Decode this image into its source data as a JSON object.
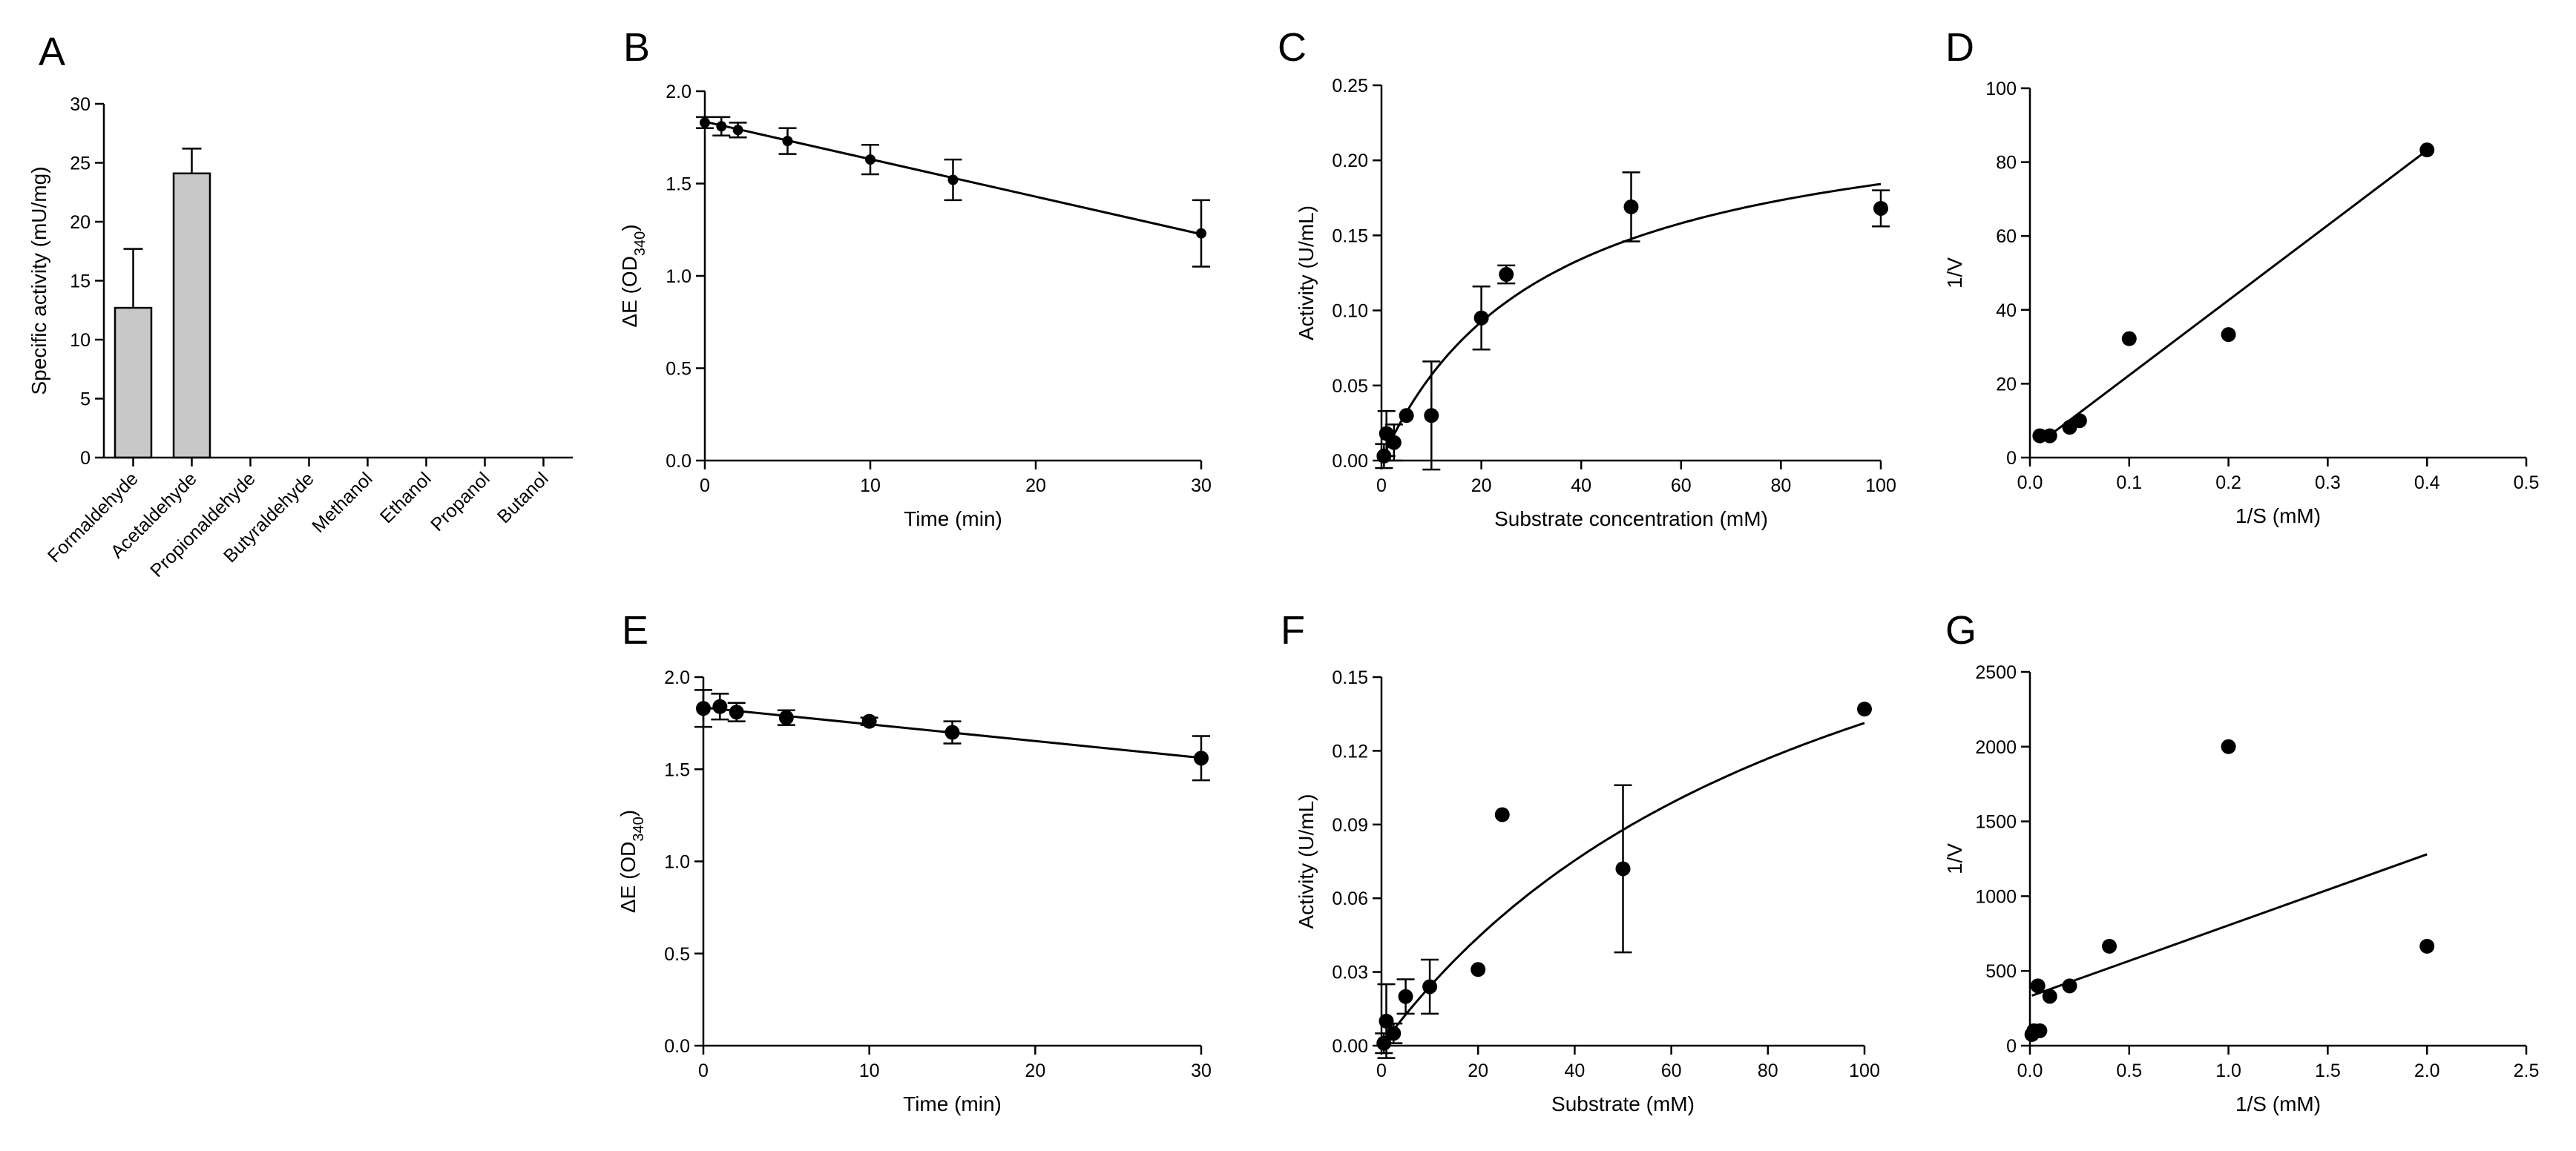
{
  "figure": {
    "panels": [
      {
        "id": "A",
        "letter": "A"
      },
      {
        "id": "B",
        "letter": "B"
      },
      {
        "id": "C",
        "letter": "C"
      },
      {
        "id": "D",
        "letter": "D"
      },
      {
        "id": "E",
        "letter": "E"
      },
      {
        "id": "F",
        "letter": "F"
      },
      {
        "id": "G",
        "letter": "G"
      }
    ]
  },
  "chart_data": [
    {
      "panel": "A",
      "type": "bar",
      "categories": [
        "Formaldehyde",
        "Acetaldehyde",
        "Propionaldehyde",
        "Butyraldehyde",
        "Methanol",
        "Ethanol",
        "Propanol",
        "Butanol"
      ],
      "values": [
        12.7,
        24.1,
        0,
        0,
        0,
        0,
        0,
        0
      ],
      "errors": [
        5.0,
        2.1,
        0,
        0,
        0,
        0,
        0,
        0
      ],
      "xlabel": "",
      "ylabel": "Specific activity (mU/mg)",
      "ylim": [
        0,
        30
      ],
      "yticks": [
        "0",
        "5",
        "10",
        "15",
        "20",
        "25",
        "30"
      ],
      "bar_color": "#c8c8c8"
    },
    {
      "panel": "B",
      "type": "scatter",
      "xlabel": "Time (min)",
      "ylabel": "ΔE (OD",
      "ylabel_sub": "340",
      "ylabel_end": ")",
      "xlim": [
        0,
        30
      ],
      "ylim": [
        0,
        2.0
      ],
      "xticks": [
        "0",
        "10",
        "20",
        "30"
      ],
      "yticks": [
        "0.0",
        "0.5",
        "1.0",
        "1.5",
        "2.0"
      ],
      "points": [
        {
          "x": 0,
          "y": 1.83,
          "err": 0.03
        },
        {
          "x": 1,
          "y": 1.81,
          "err": 0.05
        },
        {
          "x": 2,
          "y": 1.79,
          "err": 0.04
        },
        {
          "x": 5,
          "y": 1.73,
          "err": 0.07
        },
        {
          "x": 10,
          "y": 1.63,
          "err": 0.08
        },
        {
          "x": 15,
          "y": 1.52,
          "err": 0.11
        },
        {
          "x": 30,
          "y": 1.23,
          "err": 0.18
        }
      ],
      "fit": {
        "kind": "linear",
        "intercept": 1.835,
        "slope": -0.0203
      },
      "marker_size": "small"
    },
    {
      "panel": "C",
      "type": "scatter",
      "xlabel": "Substrate concentration (mM)",
      "ylabel": "Activity (U/mL)",
      "xlim": [
        0,
        100
      ],
      "ylim": [
        0,
        0.25
      ],
      "xticks": [
        "0",
        "20",
        "40",
        "60",
        "80",
        "100"
      ],
      "yticks": [
        "0.00",
        "0.05",
        "0.10",
        "0.15",
        "0.20",
        "0.25"
      ],
      "points": [
        {
          "x": 0.5,
          "y": 0.003,
          "err": 0.008
        },
        {
          "x": 1,
          "y": 0.018,
          "err": 0.015
        },
        {
          "x": 2.5,
          "y": 0.012,
          "err": 0.012
        },
        {
          "x": 5,
          "y": 0.03,
          "err": 0
        },
        {
          "x": 10,
          "y": 0.03,
          "err": 0.036
        },
        {
          "x": 20,
          "y": 0.095,
          "err": 0.021
        },
        {
          "x": 25,
          "y": 0.124,
          "err": 0.006
        },
        {
          "x": 50,
          "y": 0.169,
          "err": 0.023
        },
        {
          "x": 100,
          "y": 0.168,
          "err": 0.012
        }
      ],
      "fit": {
        "kind": "michaelis-menten",
        "vmax": 0.245,
        "km": 33
      },
      "marker_size": "large"
    },
    {
      "panel": "D",
      "type": "scatter",
      "xlabel": "1/S (mM)",
      "ylabel": "1/V",
      "xlim": [
        0,
        0.5
      ],
      "ylim": [
        0,
        100
      ],
      "xticks": [
        "0.0",
        "0.1",
        "0.2",
        "0.3",
        "0.4",
        "0.5"
      ],
      "yticks": [
        "0",
        "20",
        "40",
        "60",
        "80",
        "100"
      ],
      "points": [
        {
          "x": 0.01,
          "y": 5.9
        },
        {
          "x": 0.02,
          "y": 5.9
        },
        {
          "x": 0.04,
          "y": 8.2
        },
        {
          "x": 0.05,
          "y": 10.0
        },
        {
          "x": 0.1,
          "y": 32.2
        },
        {
          "x": 0.2,
          "y": 33.3
        },
        {
          "x": 0.4,
          "y": 83.3
        }
      ],
      "fit": {
        "kind": "linear",
        "intercept": 2.0,
        "slope": 203,
        "x_range": [
          0.01,
          0.4
        ]
      },
      "marker_size": "large"
    },
    {
      "panel": "E",
      "type": "scatter",
      "xlabel": "Time (min)",
      "ylabel": "ΔE (OD",
      "ylabel_sub": "340",
      "ylabel_end": ")",
      "xlim": [
        0,
        30
      ],
      "ylim": [
        0,
        2.0
      ],
      "xticks": [
        "0",
        "10",
        "20",
        "30"
      ],
      "yticks": [
        "0.0",
        "0.5",
        "1.0",
        "1.5",
        "2.0"
      ],
      "points": [
        {
          "x": 0,
          "y": 1.83,
          "err": 0.1
        },
        {
          "x": 1,
          "y": 1.84,
          "err": 0.07
        },
        {
          "x": 2,
          "y": 1.81,
          "err": 0.05
        },
        {
          "x": 5,
          "y": 1.78,
          "err": 0.04
        },
        {
          "x": 10,
          "y": 1.76,
          "err": 0.02
        },
        {
          "x": 15,
          "y": 1.7,
          "err": 0.06
        },
        {
          "x": 30,
          "y": 1.56,
          "err": 0.12
        }
      ],
      "fit": {
        "kind": "linear",
        "intercept": 1.835,
        "slope": -0.0091
      },
      "marker_size": "large"
    },
    {
      "panel": "F",
      "type": "scatter",
      "xlabel": "Substrate (mM)",
      "ylabel": "Activity (U/mL)",
      "xlim": [
        0,
        100
      ],
      "ylim": [
        0,
        0.15
      ],
      "xticks": [
        "0",
        "20",
        "40",
        "60",
        "80",
        "100"
      ],
      "yticks": [
        "0.00",
        "0.03",
        "0.06",
        "0.09",
        "0.12",
        "0.15"
      ],
      "points": [
        {
          "x": 0.5,
          "y": 0.001,
          "err": 0.004
        },
        {
          "x": 1,
          "y": 0.01,
          "err": 0.015
        },
        {
          "x": 2.5,
          "y": 0.005,
          "err": 0.004
        },
        {
          "x": 5,
          "y": 0.02,
          "err": 0.007
        },
        {
          "x": 10,
          "y": 0.024,
          "err": 0.011
        },
        {
          "x": 20,
          "y": 0.031,
          "err": 0
        },
        {
          "x": 25,
          "y": 0.094,
          "err": 0
        },
        {
          "x": 50,
          "y": 0.072,
          "err": 0.034
        },
        {
          "x": 100,
          "y": 0.137,
          "err": 0
        }
      ],
      "fit": {
        "kind": "michaelis-menten",
        "vmax": 0.26,
        "km": 98
      },
      "marker_size": "large"
    },
    {
      "panel": "G",
      "type": "scatter",
      "xlabel": "1/S (mM)",
      "ylabel": "1/V",
      "xlim": [
        0,
        2.5
      ],
      "ylim": [
        0,
        2500
      ],
      "xticks": [
        "0.0",
        "0.5",
        "1.0",
        "1.5",
        "2.0",
        "2.5"
      ],
      "yticks": [
        "0",
        "500",
        "1000",
        "1500",
        "2000",
        "2500"
      ],
      "points": [
        {
          "x": 0.01,
          "y": 75
        },
        {
          "x": 0.02,
          "y": 100
        },
        {
          "x": 0.04,
          "y": 400
        },
        {
          "x": 0.05,
          "y": 100
        },
        {
          "x": 0.1,
          "y": 330
        },
        {
          "x": 0.2,
          "y": 400
        },
        {
          "x": 0.4,
          "y": 665
        },
        {
          "x": 1.0,
          "y": 2000
        },
        {
          "x": 2.0,
          "y": 665
        }
      ],
      "fit": {
        "kind": "linear",
        "intercept": 330,
        "slope": 475,
        "x_range": [
          0.01,
          2.0
        ]
      },
      "marker_size": "large"
    }
  ]
}
